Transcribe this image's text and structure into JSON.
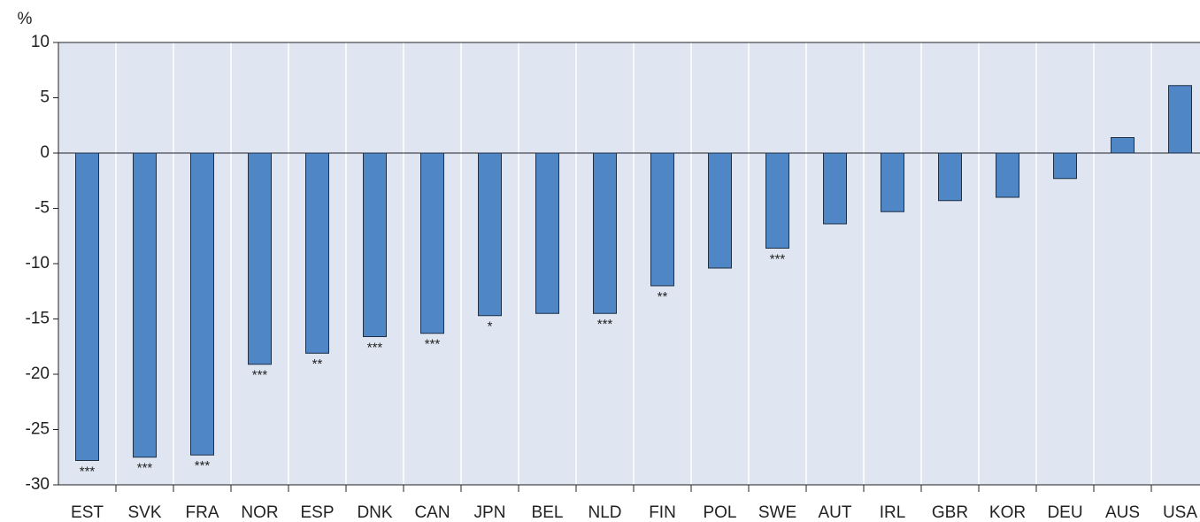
{
  "chart_data": {
    "type": "bar",
    "y_axis_label": "%",
    "categories": [
      "EST",
      "SVK",
      "FRA",
      "NOR",
      "ESP",
      "DNK",
      "CAN",
      "JPN",
      "BEL",
      "NLD",
      "FIN",
      "POL",
      "SWE",
      "AUT",
      "IRL",
      "GBR",
      "KOR",
      "DEU",
      "AUS",
      "USA"
    ],
    "values": [
      -27.8,
      -27.5,
      -27.3,
      -19.1,
      -18.1,
      -16.6,
      -16.3,
      -14.7,
      -14.5,
      -14.5,
      -12.0,
      -10.4,
      -8.6,
      -6.4,
      -5.3,
      -4.3,
      -4.0,
      -2.3,
      1.4,
      6.1
    ],
    "significance": [
      "***",
      "***",
      "***",
      "***",
      "**",
      "***",
      "***",
      "*",
      null,
      "***",
      "**",
      null,
      "***",
      null,
      null,
      null,
      null,
      null,
      null,
      null
    ],
    "color": "#4f86c6",
    "ylim": [
      -30,
      10
    ],
    "yticks": [
      -30,
      -25,
      -20,
      -15,
      -10,
      -5,
      0,
      5,
      10
    ],
    "grid": true
  }
}
